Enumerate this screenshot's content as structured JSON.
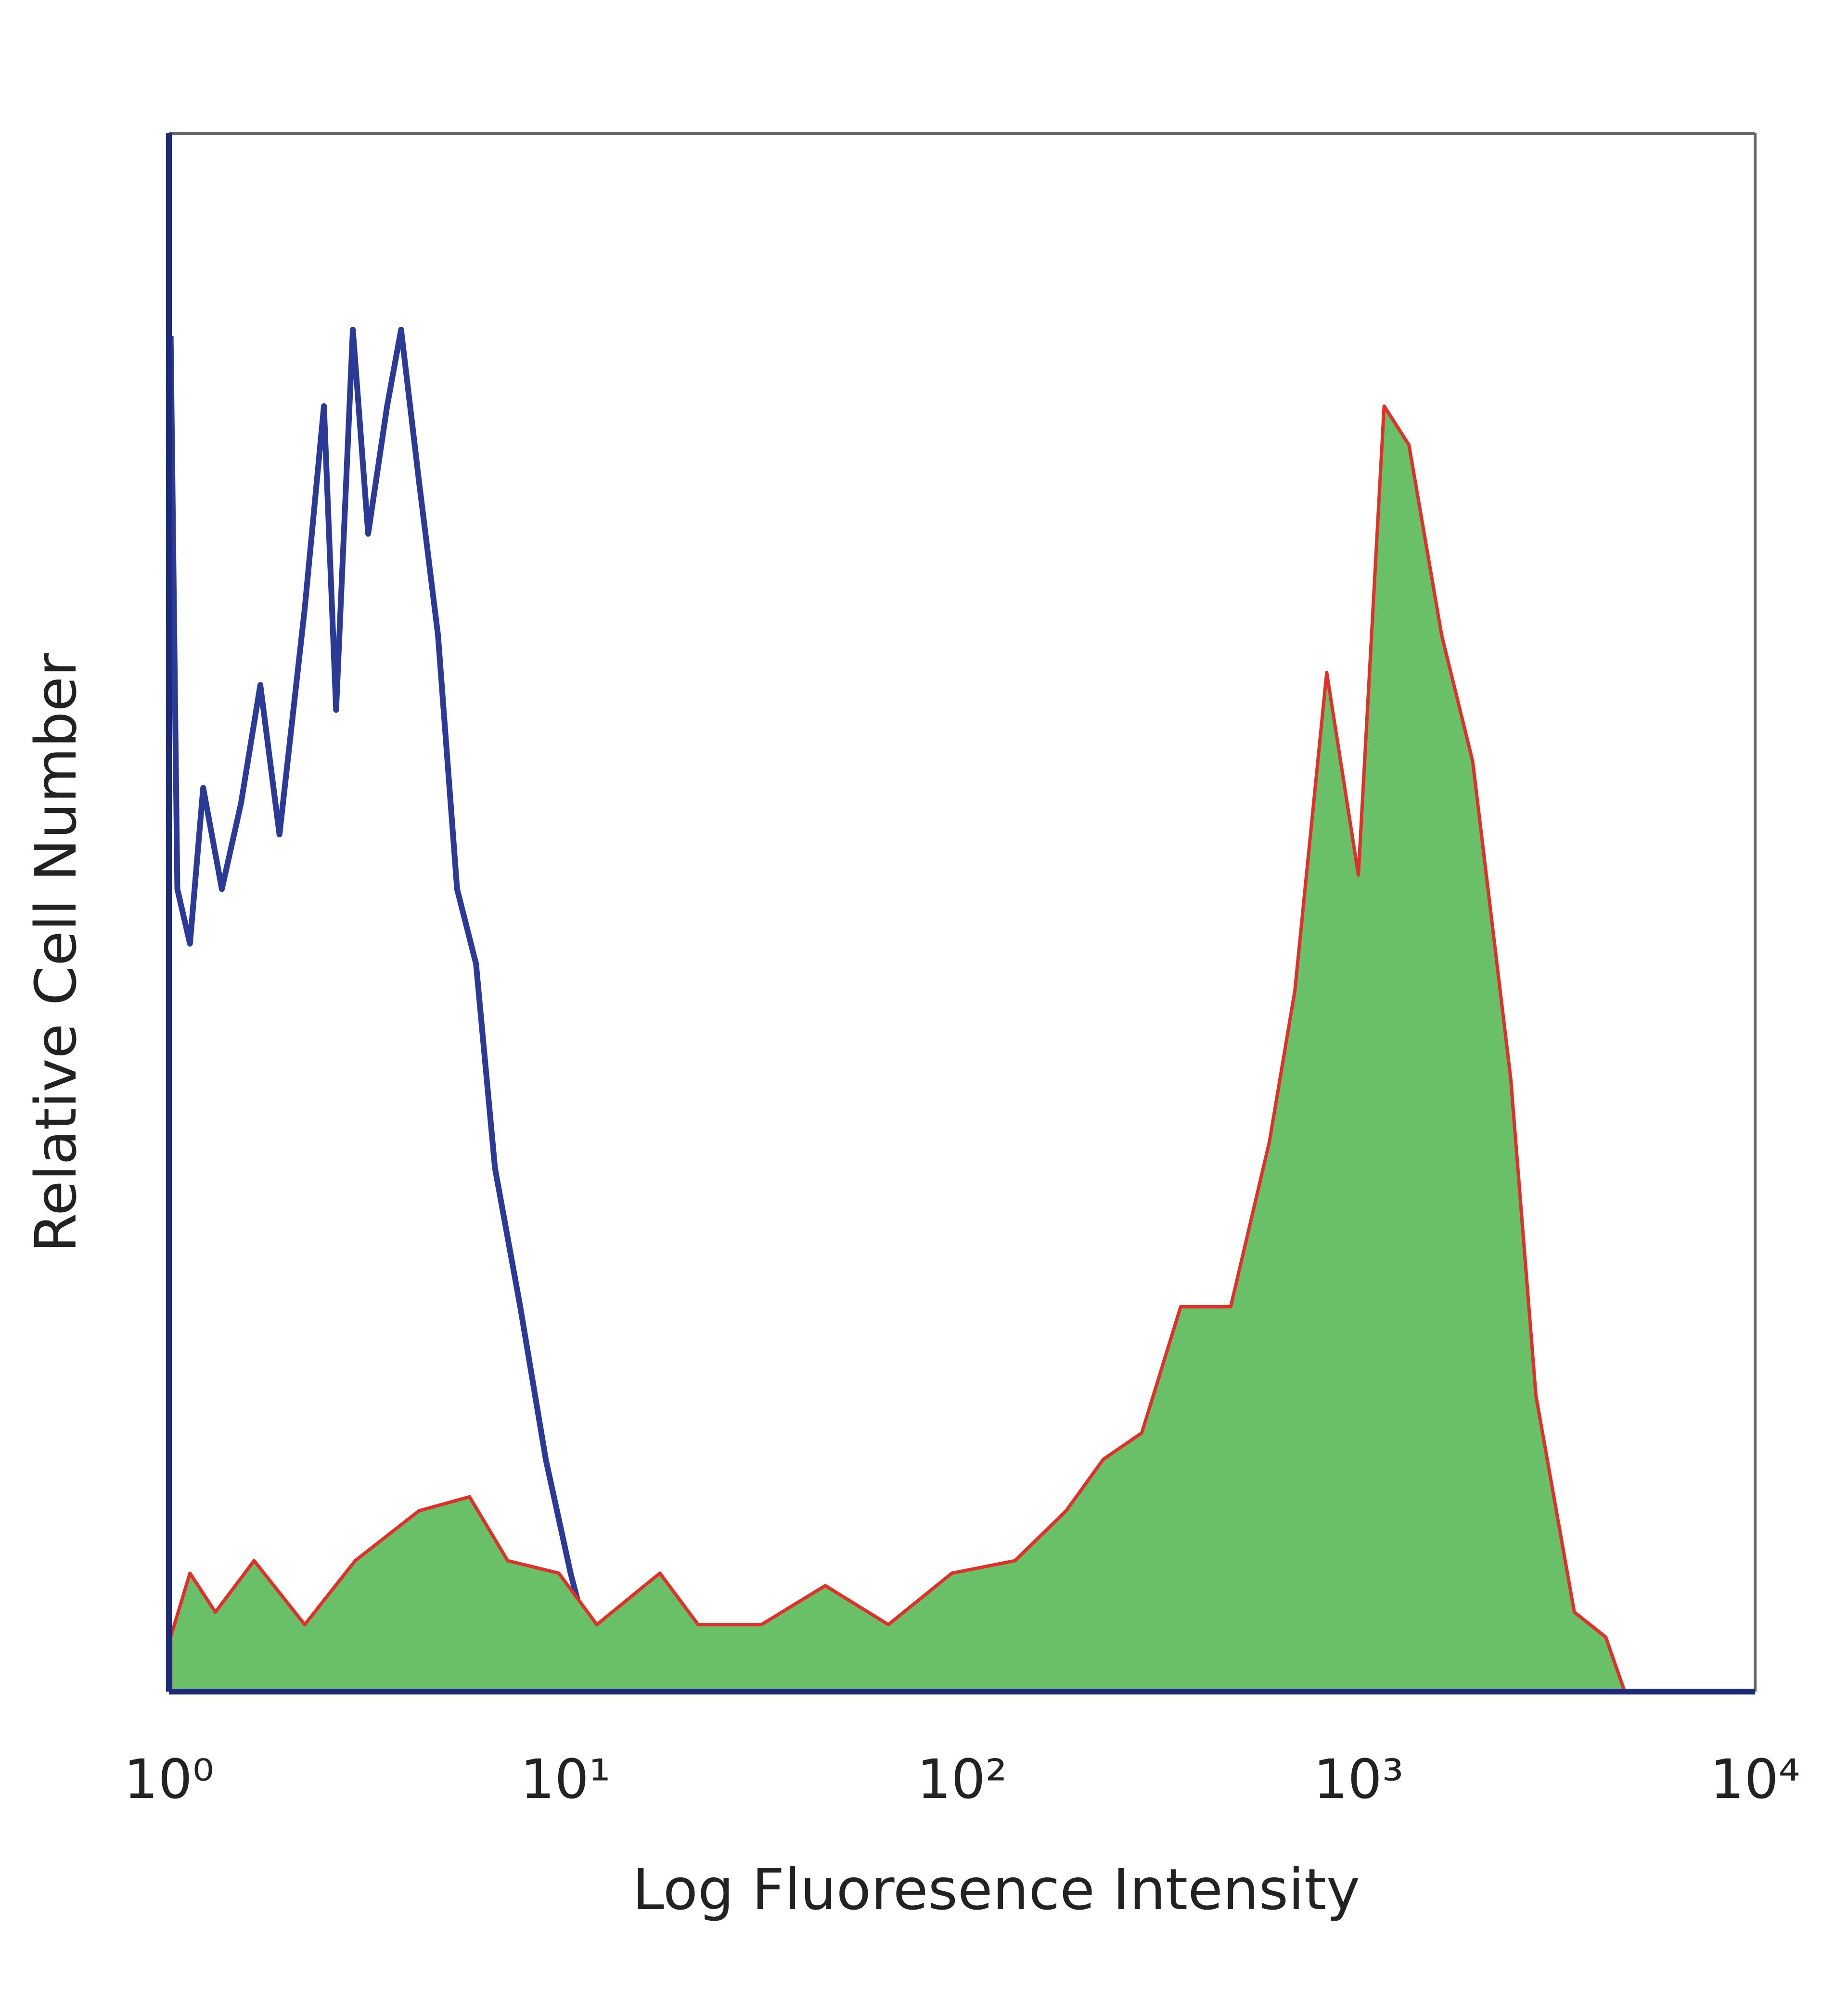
{
  "chart_data": {
    "type": "area",
    "xlabel": "Log Fluoresence Intensity",
    "ylabel": "Relative Cell Number",
    "xscale": "log",
    "xlim": [
      1,
      10000
    ],
    "xticks": [
      {
        "value": 1,
        "label": "10⁰"
      },
      {
        "value": 10,
        "label": "10¹"
      },
      {
        "value": 100,
        "label": "10²"
      },
      {
        "value": 1000,
        "label": "10³"
      },
      {
        "value": 10000,
        "label": "10⁴"
      }
    ],
    "ylim": [
      0,
      100
    ],
    "series": [
      {
        "color": "#2b3a97",
        "fill": null,
        "x": [
          1.01,
          1.05,
          1.13,
          1.22,
          1.36,
          1.52,
          1.7,
          1.9,
          2.2,
          2.46,
          2.64,
          2.91,
          3.18,
          3.55,
          3.85,
          4.27,
          4.77,
          5.33,
          5.95,
          6.64,
          7.69,
          8.92,
          10.3,
          12.0,
          13.9,
          16.1,
          18.6,
          136,
          158,
          176,
          443,
          513,
          10000
        ],
        "values": [
          87,
          51.5,
          48,
          58,
          51.5,
          57,
          64.6,
          55,
          69.5,
          82.5,
          63,
          87.4,
          74.3,
          82.5,
          87.4,
          77.7,
          67.8,
          51.5,
          46.7,
          33.6,
          24.7,
          14.9,
          7.6,
          1.1,
          2.7,
          3.5,
          0,
          0,
          3.5,
          0,
          3.5,
          0,
          0
        ]
      },
      {
        "color": "#e0302a",
        "fill": "#6abf69",
        "x": [
          1.01,
          1.13,
          1.31,
          1.64,
          2.2,
          2.95,
          4.27,
          5.73,
          7.15,
          9.62,
          12.0,
          17.3,
          21.6,
          31.2,
          45.2,
          65.2,
          94.3,
          136,
          183,
          227,
          284,
          356,
          476,
          596,
          691,
          831,
          999,
          1160,
          1340,
          1620,
          1940,
          2420,
          2800,
          3500,
          4200,
          4690
        ],
        "values": [
          3.5,
          7.6,
          5.1,
          8.4,
          4.3,
          8.4,
          11.6,
          12.5,
          8.4,
          7.6,
          4.3,
          7.6,
          4.3,
          4.3,
          6.8,
          4.3,
          7.6,
          8.4,
          11.6,
          14.9,
          16.6,
          24.7,
          24.7,
          35.3,
          45,
          65.4,
          52.4,
          82.5,
          80,
          67.8,
          59.7,
          39.3,
          19,
          5.1,
          3.5,
          0
        ]
      }
    ]
  }
}
